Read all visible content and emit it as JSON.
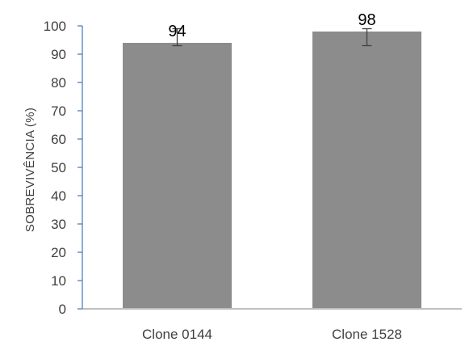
{
  "chart_data": {
    "type": "bar",
    "title": "",
    "xlabel": "",
    "ylabel": "SOBREVIVÊNCIA  (%)",
    "categories": [
      "Clone 0144",
      "Clone 1528"
    ],
    "values": [
      94,
      98
    ],
    "data_labels": [
      "94",
      "98"
    ],
    "error_bars": [
      {
        "lower": 93,
        "upper": 99
      },
      {
        "lower": 93,
        "upper": 99
      }
    ],
    "ylim": [
      0,
      100
    ],
    "yticks": [
      0,
      10,
      20,
      30,
      40,
      50,
      60,
      70,
      80,
      90,
      100
    ],
    "grid": false,
    "legend": "none",
    "colors": {
      "bar": "#8c8c8c",
      "y_axis": "#4f81bd",
      "x_axis": "#bfbfbf",
      "error_bar": "#404040",
      "data_label": "#000000"
    }
  }
}
